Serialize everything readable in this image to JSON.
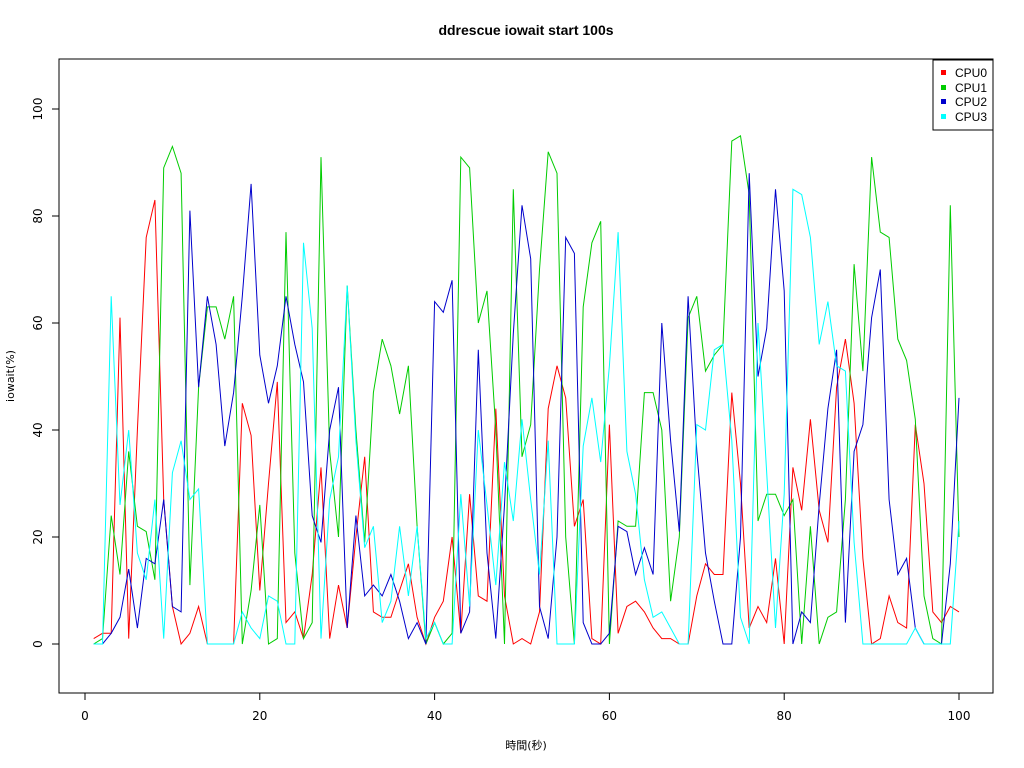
{
  "chart_data": {
    "type": "line",
    "title": "ddrescue iowait start 100s",
    "xlabel": "時間(秒)",
    "ylabel": "iowait(%)",
    "xlim": [
      0,
      100
    ],
    "ylim": [
      0,
      100
    ],
    "x_ticks": [
      0,
      20,
      40,
      60,
      80,
      100
    ],
    "y_ticks": [
      0,
      20,
      40,
      60,
      80,
      100
    ],
    "legend_position": "top-right",
    "grid": false,
    "x": [
      1,
      2,
      3,
      4,
      5,
      6,
      7,
      8,
      9,
      10,
      11,
      12,
      13,
      14,
      15,
      16,
      17,
      18,
      19,
      20,
      21,
      22,
      23,
      24,
      25,
      26,
      27,
      28,
      29,
      30,
      31,
      32,
      33,
      34,
      35,
      36,
      37,
      38,
      39,
      40,
      41,
      42,
      43,
      44,
      45,
      46,
      47,
      48,
      49,
      50,
      51,
      52,
      53,
      54,
      55,
      56,
      57,
      58,
      59,
      60,
      61,
      62,
      63,
      64,
      65,
      66,
      67,
      68,
      69,
      70,
      71,
      72,
      73,
      74,
      75,
      76,
      77,
      78,
      79,
      80,
      81,
      82,
      83,
      84,
      85,
      86,
      87,
      88,
      89,
      90,
      91,
      92,
      93,
      94,
      95,
      96,
      97,
      98,
      99,
      100
    ],
    "series": [
      {
        "name": "CPU0",
        "color": "#ff0000",
        "values": [
          1,
          2,
          2,
          61,
          1,
          40,
          76,
          83,
          27,
          7,
          0,
          2,
          7,
          0,
          0,
          0,
          0,
          45,
          39,
          10,
          30,
          49,
          4,
          6,
          1,
          13,
          33,
          1,
          11,
          3,
          20,
          35,
          6,
          5,
          5,
          10,
          15,
          5,
          0,
          5,
          8,
          20,
          2,
          28,
          9,
          8,
          44,
          9,
          0,
          1,
          0,
          6,
          44,
          52,
          46,
          22,
          27,
          1,
          0,
          41,
          2,
          7,
          8,
          6,
          3,
          1,
          1,
          0,
          0,
          9,
          15,
          13,
          13,
          47,
          30,
          3,
          7,
          4,
          16,
          0,
          33,
          25,
          42,
          25,
          19,
          48,
          57,
          45,
          16,
          0,
          1,
          9,
          4,
          3,
          41,
          30,
          6,
          4,
          7,
          6
        ]
      },
      {
        "name": "CPU1",
        "color": "#00cc00",
        "values": [
          0,
          1,
          24,
          13,
          36,
          22,
          21,
          12,
          89,
          93,
          88,
          11,
          48,
          63,
          63,
          57,
          65,
          0,
          10,
          26,
          0,
          1,
          77,
          17,
          1,
          4,
          91,
          36,
          20,
          67,
          40,
          19,
          47,
          57,
          52,
          43,
          52,
          22,
          0,
          4,
          0,
          2,
          91,
          89,
          60,
          66,
          40,
          0,
          85,
          35,
          41,
          70,
          92,
          88,
          20,
          0,
          63,
          75,
          79,
          0,
          23,
          22,
          22,
          47,
          47,
          40,
          8,
          20,
          61,
          65,
          51,
          54,
          56,
          94,
          95,
          84,
          23,
          28,
          28,
          24,
          27,
          0,
          22,
          0,
          5,
          6,
          27,
          71,
          51,
          91,
          77,
          76,
          57,
          53,
          42,
          9,
          1,
          0,
          82,
          20
        ]
      },
      {
        "name": "CPU2",
        "color": "#0000cc",
        "values": [
          0,
          0,
          2,
          5,
          14,
          3,
          16,
          15,
          27,
          7,
          6,
          81,
          48,
          65,
          56,
          37,
          47,
          65,
          86,
          54,
          45,
          52,
          65,
          56,
          49,
          24,
          19,
          40,
          48,
          3,
          24,
          9,
          11,
          9,
          13,
          8,
          1,
          4,
          0,
          64,
          62,
          68,
          2,
          6,
          55,
          17,
          1,
          26,
          58,
          82,
          72,
          7,
          1,
          20,
          76,
          73,
          4,
          0,
          0,
          2,
          22,
          21,
          13,
          18,
          13,
          60,
          38,
          21,
          65,
          36,
          17,
          8,
          0,
          0,
          20,
          88,
          50,
          59,
          85,
          66,
          0,
          6,
          4,
          26,
          44,
          55,
          4,
          36,
          41,
          61,
          70,
          27,
          13,
          16,
          3,
          0,
          0,
          0,
          15,
          46
        ]
      },
      {
        "name": "CPU3",
        "color": "#00ffff",
        "values": [
          0,
          0,
          65,
          26,
          40,
          17,
          12,
          27,
          1,
          32,
          38,
          27,
          29,
          0,
          0,
          0,
          0,
          6,
          3,
          1,
          9,
          8,
          0,
          0,
          75,
          59,
          1,
          27,
          35,
          67,
          38,
          18,
          22,
          4,
          8,
          22,
          9,
          22,
          1,
          4,
          0,
          0,
          28,
          7,
          40,
          26,
          11,
          34,
          23,
          42,
          27,
          13,
          38,
          0,
          0,
          0,
          37,
          46,
          34,
          52,
          77,
          36,
          28,
          12,
          5,
          6,
          3,
          0,
          0,
          41,
          40,
          55,
          56,
          38,
          5,
          0,
          60,
          32,
          3,
          28,
          85,
          84,
          76,
          56,
          64,
          52,
          51,
          19,
          0,
          0,
          0,
          0,
          0,
          0,
          3,
          0,
          0,
          0,
          0,
          23
        ]
      }
    ]
  }
}
